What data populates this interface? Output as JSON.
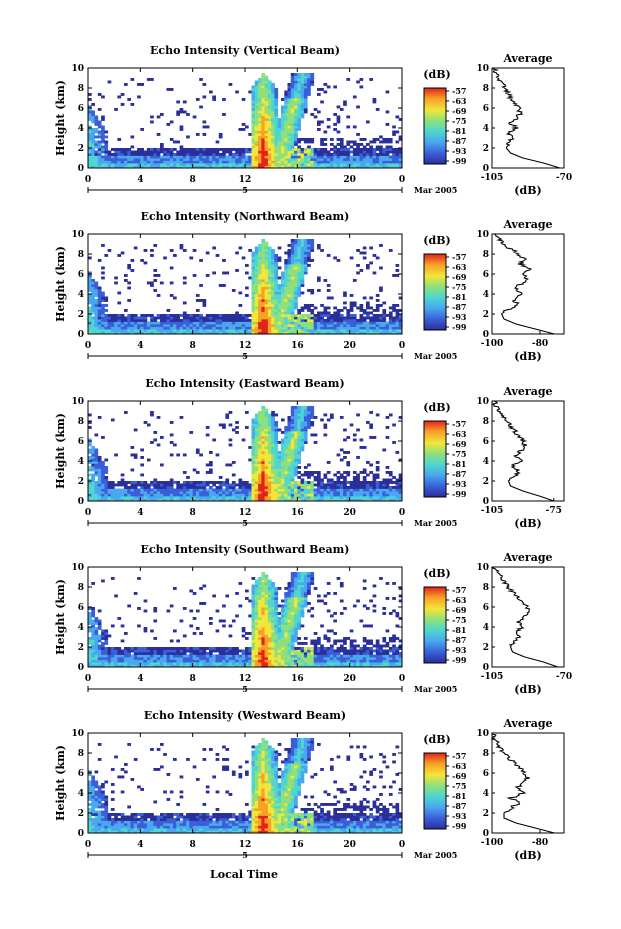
{
  "figure": {
    "x_axis_label": "Local Time",
    "y_axis_label": "Height (km)",
    "date_label": "Mar 2005",
    "day_label": "5",
    "colorbar_label": "(dB)",
    "avg_title": "Average",
    "avg_xlabel": "(dB)",
    "colors": [
      "#2a2f9a",
      "#3a5fd8",
      "#49a8ee",
      "#4fd6d0",
      "#8fe07a",
      "#f2e63a",
      "#f7a126",
      "#e3231b"
    ]
  },
  "chart_data": [
    {
      "type": "heatmap",
      "title": "Echo Intensity (Vertical Beam)",
      "x_ticks": [
        "0",
        "4",
        "8",
        "12",
        "16",
        "20",
        "0"
      ],
      "xlim": [
        0,
        24
      ],
      "y_ticks": [
        "0",
        "2",
        "4",
        "6",
        "8",
        "10"
      ],
      "ylim": [
        0,
        10
      ],
      "colorbar_ticks": [
        "-57",
        "-63",
        "-69",
        "-75",
        "-81",
        "-87",
        "-93",
        "-99"
      ],
      "avg_profile": {
        "x_ticks": [
          "-105",
          "-70"
        ],
        "xlim": [
          -105,
          -70
        ],
        "heights": [
          0,
          0.5,
          1,
          1.5,
          2,
          2.5,
          3,
          3.5,
          4,
          4.5,
          5,
          5.5,
          6,
          6.5,
          7,
          7.5,
          8,
          8.5,
          9,
          9.5,
          10
        ],
        "values": [
          -72,
          -80,
          -90,
          -96,
          -98,
          -97,
          -95,
          -97,
          -93,
          -96,
          -93,
          -91,
          -92,
          -94,
          -96,
          -97,
          -99,
          -100,
          -102,
          -103,
          -104
        ]
      }
    },
    {
      "type": "heatmap",
      "title": "Echo Intensity (Northward Beam)",
      "x_ticks": [
        "0",
        "4",
        "8",
        "12",
        "16",
        "20",
        "0"
      ],
      "xlim": [
        0,
        24
      ],
      "y_ticks": [
        "0",
        "2",
        "4",
        "6",
        "8",
        "10"
      ],
      "ylim": [
        0,
        10
      ],
      "colorbar_ticks": [
        "-57",
        "-63",
        "-69",
        "-75",
        "-81",
        "-87",
        "-93",
        "-99"
      ],
      "avg_profile": {
        "x_ticks": [
          "-100",
          "-80"
        ],
        "xlim": [
          -100,
          -70
        ],
        "heights": [
          0,
          0.5,
          1,
          1.5,
          2,
          2.5,
          3,
          3.5,
          4,
          4.5,
          5,
          5.5,
          6,
          6.5,
          7,
          7.5,
          8,
          8.5,
          9,
          9.5,
          10
        ],
        "values": [
          -74,
          -82,
          -90,
          -95,
          -96,
          -93,
          -89,
          -91,
          -87,
          -90,
          -88,
          -86,
          -87,
          -85,
          -88,
          -86,
          -89,
          -92,
          -95,
          -97,
          -99
        ]
      }
    },
    {
      "type": "heatmap",
      "title": "Echo Intensity (Eastward Beam)",
      "x_ticks": [
        "0",
        "4",
        "8",
        "12",
        "16",
        "20",
        "0"
      ],
      "xlim": [
        0,
        24
      ],
      "y_ticks": [
        "0",
        "2",
        "4",
        "6",
        "8",
        "10"
      ],
      "ylim": [
        0,
        10
      ],
      "colorbar_ticks": [
        "-57",
        "-63",
        "-69",
        "-75",
        "-81",
        "-87",
        "-93",
        "-99"
      ],
      "avg_profile": {
        "x_ticks": [
          "-105",
          "-75"
        ],
        "xlim": [
          -105,
          -70
        ],
        "heights": [
          0,
          0.5,
          1,
          1.5,
          2,
          2.5,
          3,
          3.5,
          4,
          4.5,
          5,
          5.5,
          6,
          6.5,
          7,
          7.5,
          8,
          8.5,
          9,
          9.5,
          10
        ],
        "values": [
          -75,
          -82,
          -90,
          -96,
          -97,
          -94,
          -92,
          -95,
          -91,
          -94,
          -91,
          -89,
          -90,
          -92,
          -94,
          -96,
          -98,
          -100,
          -101,
          -103,
          -104
        ]
      }
    },
    {
      "type": "heatmap",
      "title": "Echo Intensity (Southward Beam)",
      "x_ticks": [
        "0",
        "4",
        "8",
        "12",
        "16",
        "20",
        "0"
      ],
      "xlim": [
        0,
        24
      ],
      "y_ticks": [
        "0",
        "2",
        "4",
        "6",
        "8",
        "10"
      ],
      "ylim": [
        0,
        10
      ],
      "colorbar_ticks": [
        "-57",
        "-63",
        "-69",
        "-75",
        "-81",
        "-87",
        "-93",
        "-99"
      ],
      "avg_profile": {
        "x_ticks": [
          "-105",
          "-70"
        ],
        "xlim": [
          -105,
          -70
        ],
        "heights": [
          0,
          0.5,
          1,
          1.5,
          2,
          2.5,
          3,
          3.5,
          4,
          4.5,
          5,
          5.5,
          6,
          6.5,
          7,
          7.5,
          8,
          8.5,
          9,
          9.5,
          10
        ],
        "values": [
          -73,
          -80,
          -89,
          -95,
          -96,
          -94,
          -92,
          -94,
          -90,
          -92,
          -89,
          -87,
          -88,
          -90,
          -93,
          -95,
          -97,
          -99,
          -101,
          -102,
          -104
        ]
      }
    },
    {
      "type": "heatmap",
      "title": "Echo Intensity (Westward Beam)",
      "x_ticks": [
        "0",
        "4",
        "8",
        "12",
        "16",
        "20",
        "0"
      ],
      "xlim": [
        0,
        24
      ],
      "y_ticks": [
        "0",
        "2",
        "4",
        "6",
        "8",
        "10"
      ],
      "ylim": [
        0,
        10
      ],
      "colorbar_ticks": [
        "-57",
        "-63",
        "-69",
        "-75",
        "-81",
        "-87",
        "-93",
        "-99"
      ],
      "avg_profile": {
        "x_ticks": [
          "-100",
          "-80"
        ],
        "xlim": [
          -100,
          -70
        ],
        "heights": [
          0,
          0.5,
          1,
          1.5,
          2,
          2.5,
          3,
          3.5,
          4,
          4.5,
          5,
          5.5,
          6,
          6.5,
          7,
          7.5,
          8,
          8.5,
          9,
          9.5,
          10
        ],
        "values": [
          -74,
          -82,
          -90,
          -95,
          -95,
          -92,
          -89,
          -92,
          -87,
          -90,
          -87,
          -85,
          -86,
          -88,
          -91,
          -93,
          -95,
          -97,
          -98,
          -99,
          -100
        ]
      }
    }
  ]
}
